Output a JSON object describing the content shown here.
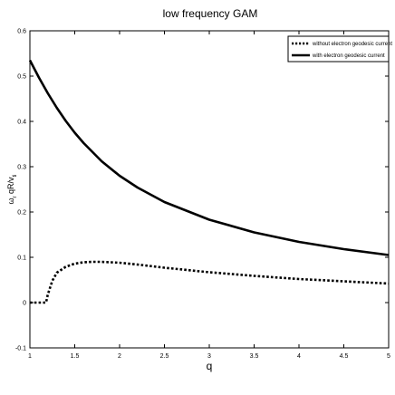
{
  "chart_data": {
    "type": "line",
    "title": "low frequency GAM",
    "xlabel": "q",
    "ylabel": "ω_r qR/v_ti",
    "ylabel_parts": {
      "omega": "ω",
      "r": "r",
      "mid": " qR/v",
      "ti": "ti"
    },
    "xlim": [
      1,
      5
    ],
    "ylim": [
      -0.1,
      0.6
    ],
    "xticks": [
      1,
      1.5,
      2,
      2.5,
      3,
      3.5,
      4,
      4.5,
      5
    ],
    "xtick_labels": [
      "1",
      "1.5",
      "2",
      "2.5",
      "3",
      "3.5",
      "4",
      "4.5",
      "5"
    ],
    "yticks": [
      -0.1,
      0,
      0.1,
      0.2,
      0.3,
      0.4,
      0.5,
      0.6
    ],
    "ytick_labels": [
      "-0.1",
      "0",
      "0.1",
      "0.2",
      "0.3",
      "0.4",
      "0.5",
      "0.6"
    ],
    "grid": false,
    "legend_position": "top-right",
    "series": [
      {
        "name": "without electron geodesic current",
        "style": "dotted",
        "color": "#000000",
        "x": [
          1.0,
          1.1,
          1.18,
          1.2,
          1.25,
          1.3,
          1.4,
          1.5,
          1.6,
          1.7,
          1.8,
          2.0,
          2.2,
          2.5,
          3.0,
          3.5,
          4.0,
          4.5,
          5.0
        ],
        "y": [
          0.0,
          0.0,
          0.0,
          0.018,
          0.048,
          0.066,
          0.079,
          0.086,
          0.089,
          0.09,
          0.09,
          0.088,
          0.084,
          0.077,
          0.067,
          0.059,
          0.052,
          0.047,
          0.042
        ]
      },
      {
        "name": "with electron geodesic current",
        "style": "solid",
        "color": "#000000",
        "x": [
          1.0,
          1.1,
          1.2,
          1.3,
          1.4,
          1.5,
          1.6,
          1.8,
          2.0,
          2.2,
          2.5,
          3.0,
          3.5,
          4.0,
          4.5,
          5.0
        ],
        "y": [
          0.535,
          0.497,
          0.462,
          0.43,
          0.401,
          0.375,
          0.352,
          0.312,
          0.28,
          0.254,
          0.222,
          0.183,
          0.155,
          0.134,
          0.118,
          0.105
        ]
      }
    ]
  }
}
